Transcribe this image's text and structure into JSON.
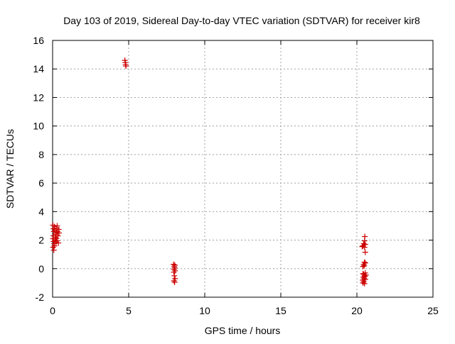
{
  "chart_data": {
    "type": "scatter",
    "title": "Day 103 of 2019, Sidereal Day-to-day VTEC variation (SDTVAR) for receiver kir8",
    "xlabel": "GPS time / hours",
    "ylabel": "SDTVAR / TECUs",
    "xlim": [
      0,
      25
    ],
    "ylim": [
      -2,
      16
    ],
    "xticks": [
      "0",
      "5",
      "10",
      "15",
      "20",
      "25"
    ],
    "yticks": [
      "-2",
      "0",
      "2",
      "4",
      "6",
      "8",
      "10",
      "12",
      "14",
      "16"
    ],
    "grid": true,
    "marker": "+",
    "marker_color": "#cc0000",
    "series": [
      {
        "points": [
          [
            0.02,
            3.05
          ],
          [
            0.05,
            2.8
          ],
          [
            0.08,
            2.6
          ],
          [
            0.05,
            2.3
          ],
          [
            0.02,
            2.1
          ],
          [
            0.06,
            1.9
          ],
          [
            0.1,
            1.75
          ],
          [
            0.03,
            1.5
          ],
          [
            0.08,
            1.3
          ],
          [
            0.12,
            2.95
          ],
          [
            0.15,
            2.7
          ],
          [
            0.18,
            2.4
          ],
          [
            0.2,
            2.2
          ],
          [
            0.15,
            2.0
          ],
          [
            0.22,
            1.85
          ],
          [
            0.25,
            2.55
          ],
          [
            0.28,
            2.85
          ],
          [
            0.3,
            3.0
          ],
          [
            0.32,
            2.6
          ],
          [
            0.35,
            2.3
          ],
          [
            0.3,
            1.95
          ],
          [
            0.38,
            1.8
          ],
          [
            0.4,
            2.75
          ],
          [
            0.42,
            2.5
          ],
          [
            0.12,
            1.6
          ],
          [
            0.25,
            2.1
          ],
          [
            4.75,
            14.6
          ],
          [
            4.78,
            14.45
          ],
          [
            4.8,
            14.3
          ],
          [
            4.82,
            14.2
          ],
          [
            7.95,
            0.3
          ],
          [
            8.0,
            0.15
          ],
          [
            8.02,
            0.05
          ],
          [
            7.98,
            -0.05
          ],
          [
            8.05,
            -0.15
          ],
          [
            7.97,
            -0.25
          ],
          [
            8.03,
            0.25
          ],
          [
            8.0,
            -0.5
          ],
          [
            8.05,
            -0.7
          ],
          [
            7.98,
            -0.85
          ],
          [
            8.02,
            -0.95
          ],
          [
            20.35,
            1.55
          ],
          [
            20.4,
            1.6
          ],
          [
            20.45,
            1.75
          ],
          [
            20.5,
            1.5
          ],
          [
            20.55,
            1.7
          ],
          [
            20.52,
            2.25
          ],
          [
            20.5,
            1.95
          ],
          [
            20.55,
            1.15
          ],
          [
            20.4,
            0.15
          ],
          [
            20.45,
            0.3
          ],
          [
            20.5,
            0.45
          ],
          [
            20.55,
            0.4
          ],
          [
            20.48,
            0.2
          ],
          [
            20.4,
            -0.35
          ],
          [
            20.45,
            -0.4
          ],
          [
            20.5,
            -0.5
          ],
          [
            20.55,
            -0.3
          ],
          [
            20.6,
            -0.45
          ],
          [
            20.42,
            -0.6
          ],
          [
            20.48,
            -0.7
          ],
          [
            20.52,
            -0.55
          ],
          [
            20.38,
            -0.8
          ],
          [
            20.45,
            -0.9
          ],
          [
            20.5,
            -1.05
          ],
          [
            20.4,
            -1.0
          ],
          [
            20.55,
            -0.75
          ]
        ]
      }
    ]
  }
}
